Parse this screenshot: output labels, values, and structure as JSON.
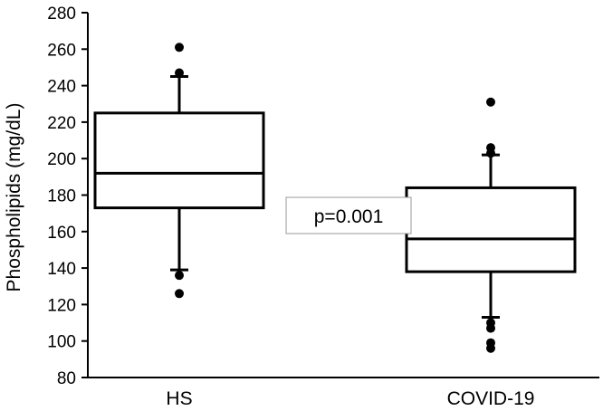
{
  "chart_data": {
    "type": "box",
    "title": "",
    "xlabel": "",
    "ylabel": "Phospholipids (mg/dL)",
    "ylim": [
      80,
      280
    ],
    "yticks": [
      80,
      100,
      120,
      140,
      160,
      180,
      200,
      220,
      240,
      260,
      280
    ],
    "grid": false,
    "categories": [
      "HS",
      "COVID-19"
    ],
    "boxes": [
      {
        "category": "HS",
        "whisker_low": 139,
        "q1": 173,
        "median": 192,
        "q3": 225,
        "whisker_high": 245,
        "outliers": [
          126,
          136,
          247,
          261
        ]
      },
      {
        "category": "COVID-19",
        "whisker_low": 113,
        "q1": 138,
        "median": 156,
        "q3": 184,
        "whisker_high": 202,
        "outliers": [
          96,
          99,
          107,
          110,
          203,
          206,
          231
        ]
      }
    ],
    "annotations": [
      {
        "text": "p=0.001"
      }
    ]
  },
  "colors": {
    "stroke": "#000000",
    "background": "#ffffff"
  }
}
